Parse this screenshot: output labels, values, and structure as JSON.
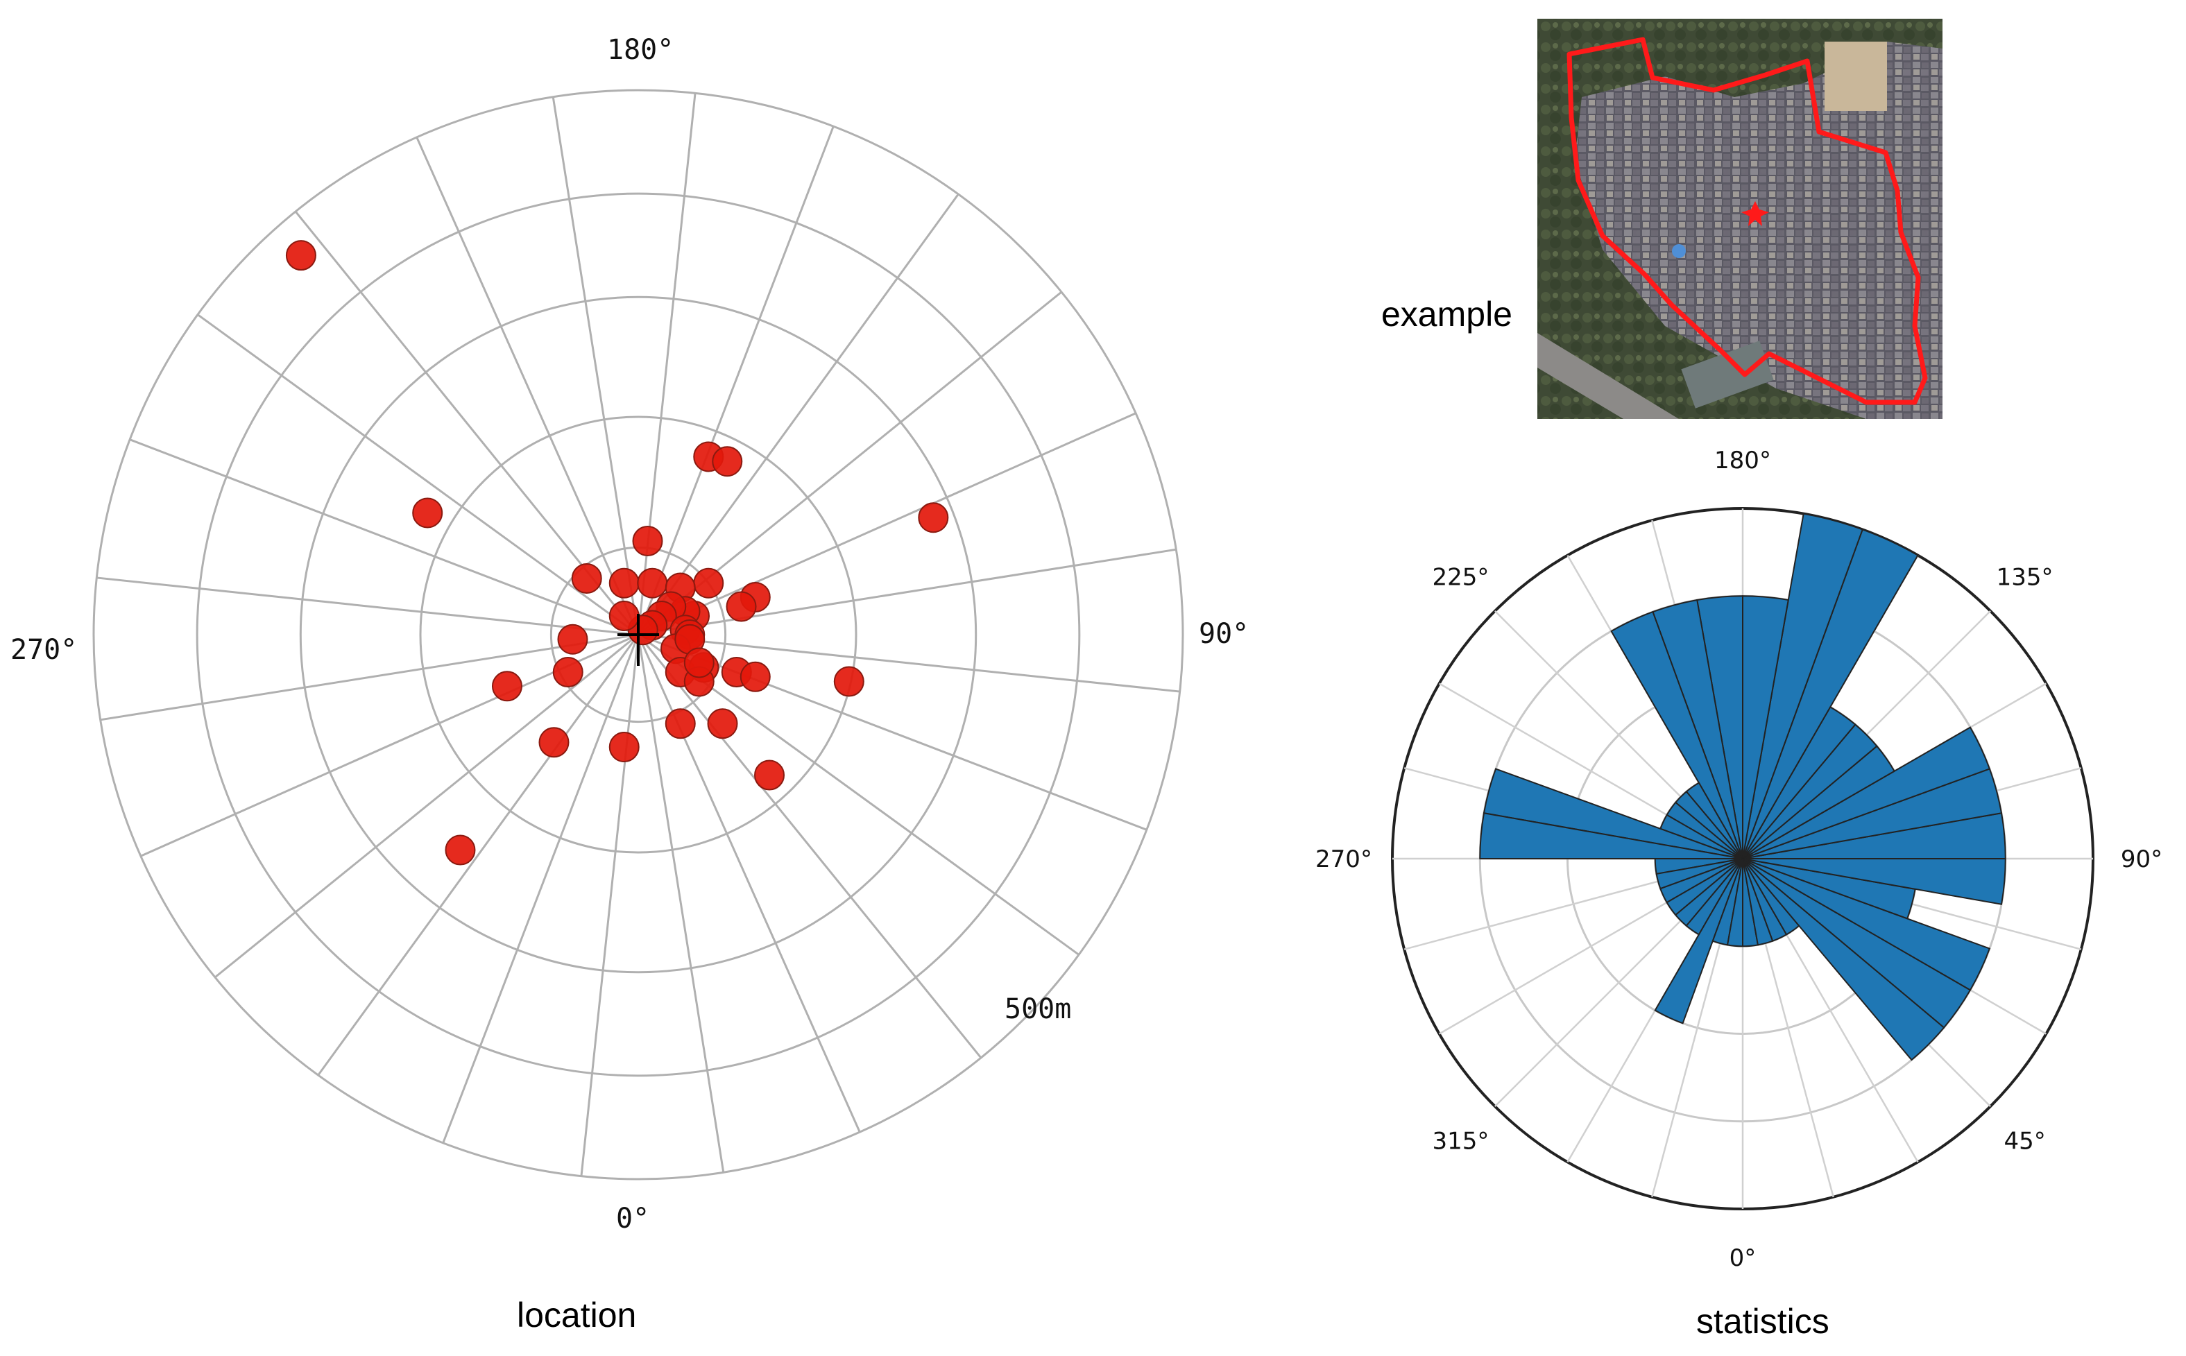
{
  "captions": {
    "location": "location",
    "statistics": "statistics",
    "example": "example"
  },
  "colors": {
    "point_fill": "#e3180b",
    "point_stroke": "#8a1a10",
    "bar_fill": "#1f77b4",
    "grid": "#b0b0b0",
    "boundary": "#ff1a1a"
  },
  "chart_data": [
    {
      "type": "scatter",
      "subtype": "polar",
      "caption": "location",
      "theta_tick_labels": [
        {
          "deg": 0,
          "text": "0°"
        },
        {
          "deg": 90,
          "text": "90°"
        },
        {
          "deg": 180,
          "text": "180°"
        },
        {
          "deg": 270,
          "text": "270°"
        }
      ],
      "radius_label": "500m",
      "radial_gridline_count": 5,
      "angular_spokes_deg": 15,
      "grid": true,
      "points_dx_dy": [
        [
          -0.72,
          0.81
        ],
        [
          0.15,
          0.38
        ],
        [
          0.19,
          0.37
        ],
        [
          -0.45,
          0.26
        ],
        [
          0.63,
          0.25
        ],
        [
          0.02,
          0.2
        ],
        [
          -0.11,
          0.12
        ],
        [
          -0.03,
          0.11
        ],
        [
          0.03,
          0.11
        ],
        [
          0.15,
          0.11
        ],
        [
          0.25,
          0.08
        ],
        [
          0.22,
          0.06
        ],
        [
          0.09,
          0.1
        ],
        [
          0.12,
          0.04
        ],
        [
          0.1,
          0.05
        ],
        [
          0.07,
          0.06
        ],
        [
          0.05,
          0.04
        ],
        [
          0.03,
          0.02
        ],
        [
          0.01,
          0.01
        ],
        [
          -0.03,
          0.04
        ],
        [
          0.1,
          0.01
        ],
        [
          0.11,
          0.0
        ],
        [
          0.08,
          -0.03
        ],
        [
          0.11,
          -0.01
        ],
        [
          -0.14,
          -0.01
        ],
        [
          0.45,
          -0.1
        ],
        [
          0.09,
          -0.08
        ],
        [
          0.14,
          -0.07
        ],
        [
          0.13,
          -0.1
        ],
        [
          0.21,
          -0.08
        ],
        [
          0.25,
          -0.09
        ],
        [
          -0.15,
          -0.08
        ],
        [
          -0.28,
          -0.11
        ],
        [
          -0.18,
          -0.23
        ],
        [
          -0.03,
          -0.24
        ],
        [
          0.09,
          -0.19
        ],
        [
          0.18,
          -0.19
        ],
        [
          0.28,
          -0.3
        ],
        [
          -0.38,
          -0.46
        ],
        [
          0.13,
          -0.06
        ]
      ]
    },
    {
      "type": "bar",
      "subtype": "polar-histogram",
      "caption": "statistics",
      "theta_tick_labels": [
        {
          "deg": 0,
          "text": "0°"
        },
        {
          "deg": 45,
          "text": "45°"
        },
        {
          "deg": 90,
          "text": "90°"
        },
        {
          "deg": 135,
          "text": "135°"
        },
        {
          "deg": 180,
          "text": "180°"
        },
        {
          "deg": 225,
          "text": "225°"
        },
        {
          "deg": 270,
          "text": "270°"
        },
        {
          "deg": 315,
          "text": "315°"
        }
      ],
      "bin_width_deg": 10,
      "bins_start_deg": [
        0,
        10,
        20,
        30,
        40,
        50,
        60,
        70,
        80,
        90,
        100,
        110,
        120,
        130,
        140,
        150,
        160,
        170,
        180,
        190,
        200,
        210,
        220,
        230,
        240,
        250,
        260,
        270,
        280,
        290,
        300,
        310,
        320,
        330,
        340,
        350
      ],
      "values": [
        1,
        1,
        1,
        1,
        3,
        3,
        3,
        2,
        3,
        3,
        3,
        3,
        2,
        2,
        2,
        4,
        4,
        3,
        3,
        3,
        3,
        1,
        1,
        1,
        1,
        3,
        3,
        1,
        1,
        1,
        1,
        1,
        1,
        2,
        1,
        1
      ],
      "rlim": [
        0,
        4
      ],
      "grid": true
    }
  ]
}
